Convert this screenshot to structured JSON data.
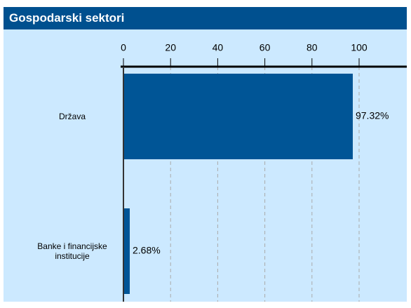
{
  "chart_data": {
    "type": "bar",
    "orientation": "horizontal",
    "title": "Gospodarski sektori",
    "categories": [
      "Država",
      "Banke i financijske institucije"
    ],
    "values": [
      97.32,
      2.68
    ],
    "value_labels": [
      "97.32%",
      "2.68%"
    ],
    "color": "#005596",
    "xlim": [
      0,
      120
    ],
    "xticks": [
      0,
      20,
      40,
      60,
      80,
      100
    ],
    "grid": true
  }
}
